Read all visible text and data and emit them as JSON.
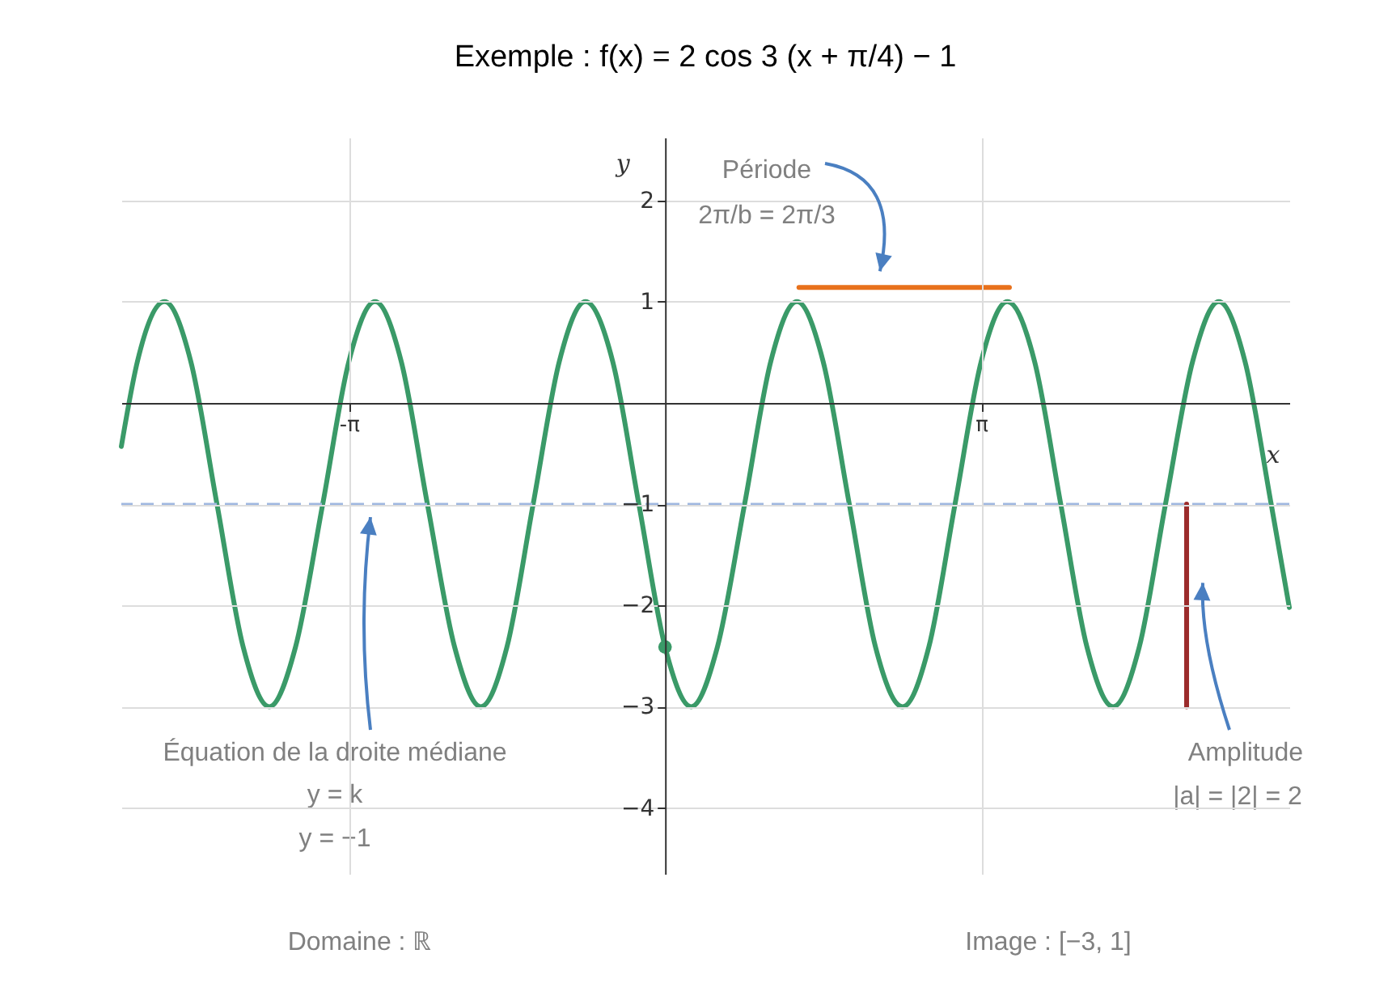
{
  "chart_data": {
    "type": "line",
    "title": "Exemple : f(x) = 2 cos 3 (x + π/4) − 1",
    "xlabel": "x",
    "ylabel": "y",
    "xlim": [
      -5.4,
      6.2
    ],
    "ylim": [
      -4.65,
      2.62
    ],
    "xticks": [
      {
        "value": -3.14,
        "label": "-π"
      },
      {
        "value": 3.14,
        "label": "π"
      }
    ],
    "yticks": [
      -4,
      -3,
      -2,
      -1,
      1,
      2
    ],
    "grid": true,
    "series": [
      {
        "color": "#3a9a68",
        "x": [
          -5.4,
          -5.24,
          -4.97,
          -4.71,
          -4.45,
          -4.19,
          -3.93,
          -3.67,
          -3.4,
          -3.14,
          -2.88,
          -2.62,
          -2.36,
          -2.09,
          -1.83,
          -1.57,
          -1.31,
          -1.05,
          -0.79,
          -0.52,
          -0.26,
          0,
          0.26,
          0.52,
          0.79,
          1.05,
          1.31,
          1.57,
          1.83,
          2.09,
          2.36,
          2.62,
          2.88,
          3.14,
          3.4,
          3.67,
          3.93,
          4.19,
          4.45,
          4.71,
          4.97,
          5.24,
          5.5,
          5.76,
          6.02,
          6.2
        ],
        "values": [
          -0.43,
          0.41,
          1,
          0.41,
          -1,
          -2.41,
          -3,
          -2.41,
          -1,
          0.41,
          1,
          0.41,
          -1,
          -2.41,
          -3,
          -2.41,
          -1,
          0.41,
          1,
          0.41,
          -1,
          -2.41,
          -3,
          -2.41,
          -1,
          0.41,
          1,
          0.41,
          -1,
          -2.41,
          -3,
          -2.41,
          -1,
          0.41,
          1,
          0.41,
          -1,
          -2.41,
          -3,
          -2.41,
          -1,
          0.41,
          1,
          0.41,
          -1,
          -2.02
        ]
      },
      {
        "type": "scatter",
        "color": "#3a9a68",
        "x": [
          0
        ],
        "values": [
          -2.41
        ]
      },
      {
        "color": "#e8711c",
        "x": [
          1.33,
          3.42
        ],
        "values": [
          1.14,
          1.14
        ]
      },
      {
        "color": "#9b2b2b",
        "x": [
          5.18,
          5.18
        ],
        "values": [
          -1,
          -3
        ]
      }
    ],
    "ref_lines": [
      {
        "axis": "y",
        "value": -1,
        "color": "#9fb7e0",
        "line_style": "dashed"
      }
    ],
    "annotations": [
      "Période",
      "2π/b = 2π/3",
      "Équation de la droite médiane",
      "y = k",
      "y = −1",
      "Amplitude",
      "|a| = |2| = 2",
      "Domaine : ℝ",
      "Image : [−3, 1]"
    ]
  }
}
